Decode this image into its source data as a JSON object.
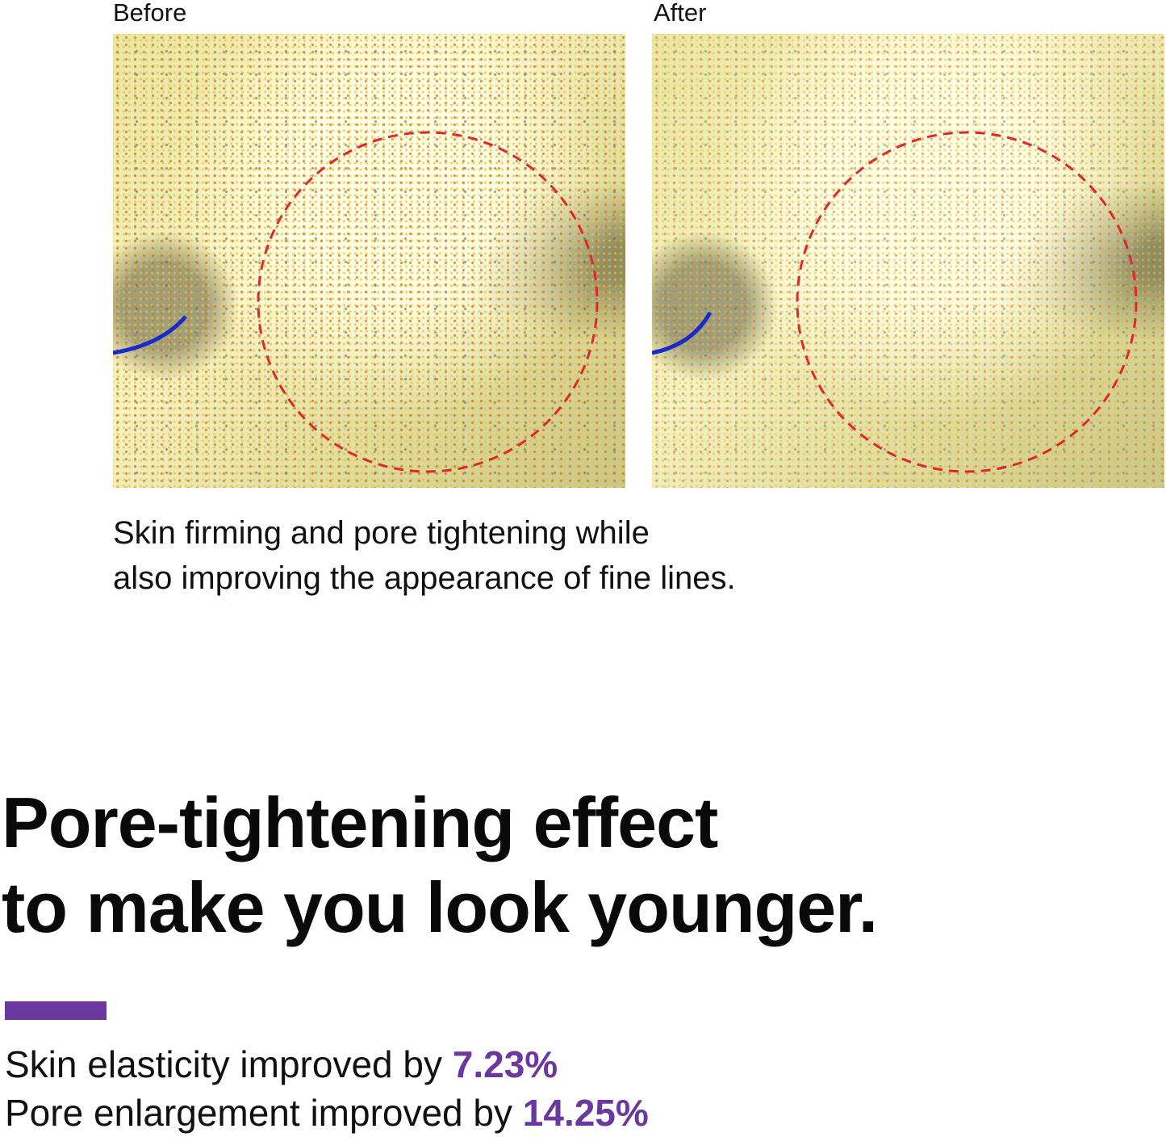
{
  "comparison": {
    "before_label": "Before",
    "after_label": "After",
    "highlight_color": "#e0282a"
  },
  "caption": {
    "line1": "Skin firming and pore tightening while",
    "line2": "also improving the appearance of fine lines."
  },
  "headline": {
    "line1": "Pore-tightening effect",
    "line2": "to make you look younger."
  },
  "accent_color": "#6a389f",
  "stats": [
    {
      "text": "Skin elasticity improved by ",
      "value": "7.23%"
    },
    {
      "text": "Pore enlargement improved by ",
      "value": "14.25%"
    }
  ]
}
